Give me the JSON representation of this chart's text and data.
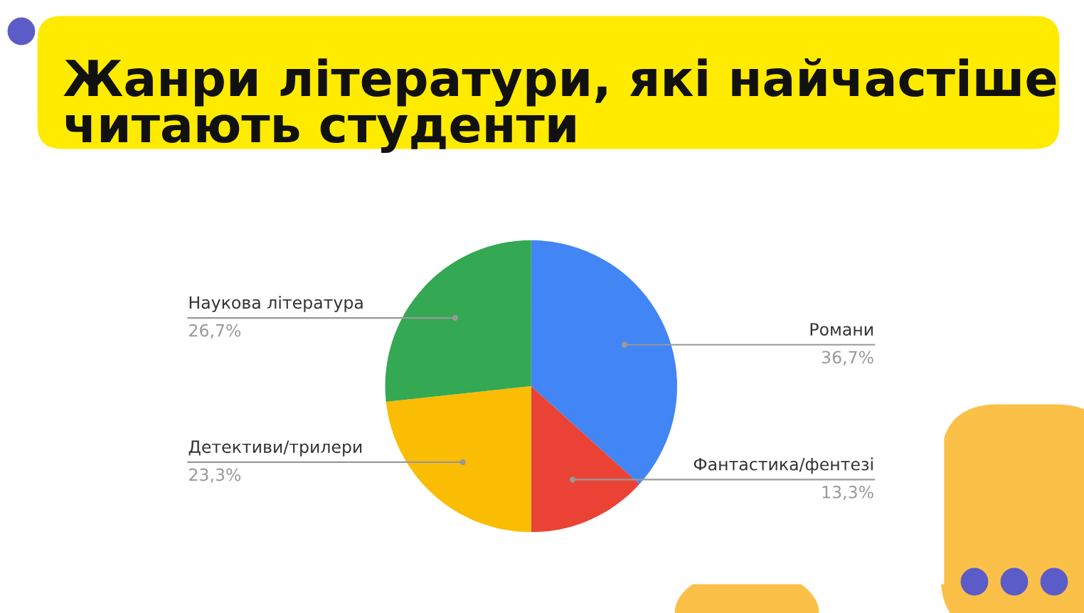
{
  "chart_data": {
    "type": "pie",
    "title": "Жанри літератури, які найчастіше читають студенти",
    "categories": [
      "Романи",
      "Фантастика/фентезі",
      "Детективи/трилери",
      "Наукова література"
    ],
    "values": [
      36.7,
      13.3,
      23.3,
      26.7
    ],
    "colors": [
      "#4285f4",
      "#ea4335",
      "#fbbc04",
      "#34a853"
    ],
    "value_labels": [
      "36,7%",
      "13,3%",
      "23,3%",
      "26,7%"
    ]
  }
}
